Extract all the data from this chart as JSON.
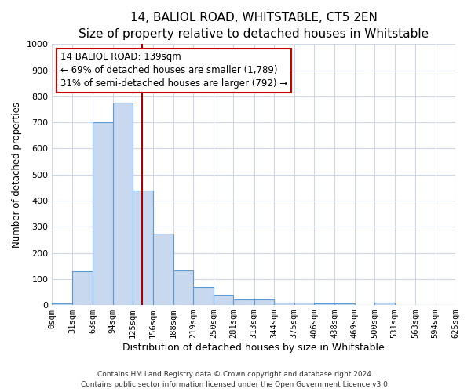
{
  "title": "14, BALIOL ROAD, WHITSTABLE, CT5 2EN",
  "subtitle": "Size of property relative to detached houses in Whitstable",
  "xlabel": "Distribution of detached houses by size in Whitstable",
  "ylabel": "Number of detached properties",
  "bin_edges": [
    0,
    31,
    63,
    94,
    125,
    156,
    188,
    219,
    250,
    281,
    313,
    344,
    375,
    406,
    438,
    469,
    500,
    531,
    563,
    594,
    625
  ],
  "bar_heights": [
    7,
    128,
    700,
    775,
    440,
    275,
    133,
    68,
    40,
    22,
    20,
    8,
    8,
    5,
    5,
    0,
    10,
    0,
    0,
    0
  ],
  "bar_color": "#c8d8ee",
  "bar_edge_color": "#5b9bd5",
  "plot_bg_color": "#ffffff",
  "fig_bg_color": "#ffffff",
  "vline_x": 139,
  "vline_color": "#aa0000",
  "annotation_title": "14 BALIOL ROAD: 139sqm",
  "annotation_line1": "← 69% of detached houses are smaller (1,789)",
  "annotation_line2": "31% of semi-detached houses are larger (792) →",
  "annotation_box_facecolor": "#ffffff",
  "annotation_box_edgecolor": "#cc0000",
  "ylim": [
    0,
    1000
  ],
  "yticks": [
    0,
    100,
    200,
    300,
    400,
    500,
    600,
    700,
    800,
    900,
    1000
  ],
  "tick_labels": [
    "0sqm",
    "31sqm",
    "63sqm",
    "94sqm",
    "125sqm",
    "156sqm",
    "188sqm",
    "219sqm",
    "250sqm",
    "281sqm",
    "313sqm",
    "344sqm",
    "375sqm",
    "406sqm",
    "438sqm",
    "469sqm",
    "500sqm",
    "531sqm",
    "563sqm",
    "594sqm",
    "625sqm"
  ],
  "footnote1": "Contains HM Land Registry data © Crown copyright and database right 2024.",
  "footnote2": "Contains public sector information licensed under the Open Government Licence v3.0.",
  "title_fontsize": 11,
  "subtitle_fontsize": 9.5,
  "xlabel_fontsize": 9,
  "ylabel_fontsize": 8.5,
  "tick_fontsize": 7.5,
  "ytick_fontsize": 8,
  "footnote_fontsize": 6.5,
  "annot_fontsize": 8.5,
  "grid_color": "#d0d8e8",
  "grid_linewidth": 0.8
}
